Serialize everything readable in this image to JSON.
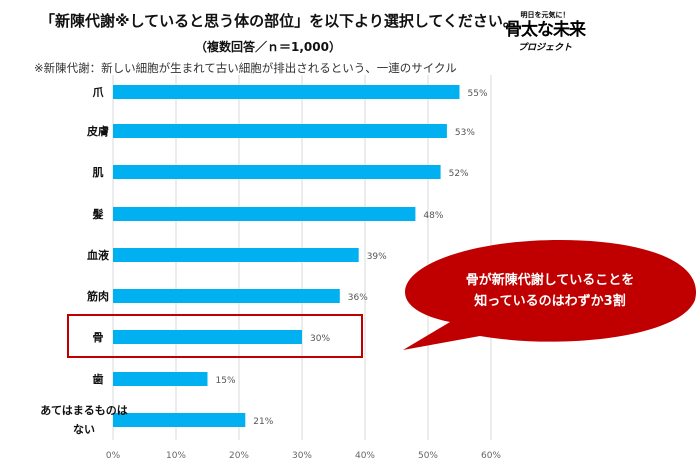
{
  "chart_data": {
    "type": "bar",
    "orientation": "horizontal",
    "title": "「新陳代謝※していると思う体の部位」を以下より選択してください。",
    "subtitle": "（複数回答／ｎ＝1,000）",
    "note": "※新陳代謝：新しい細胞が生まれて古い細胞が排出されるという、一連のサイクル",
    "categories": [
      "爪",
      "皮膚",
      "肌",
      "髪",
      "血液",
      "筋肉",
      "骨",
      "歯",
      "あてはまるものはない"
    ],
    "category_lines": [
      [
        "爪"
      ],
      [
        "皮膚"
      ],
      [
        "肌"
      ],
      [
        "髪"
      ],
      [
        "血液"
      ],
      [
        "筋肉"
      ],
      [
        "骨"
      ],
      [
        "歯"
      ],
      [
        "あてはまるものは",
        "ない"
      ]
    ],
    "values": [
      55,
      53,
      52,
      48,
      39,
      36,
      30,
      15,
      21
    ],
    "value_labels": [
      "55%",
      "53%",
      "52%",
      "48%",
      "39%",
      "36%",
      "30%",
      "15%",
      "21%"
    ],
    "xlim": [
      0,
      60
    ],
    "xticks": [
      0,
      10,
      20,
      30,
      40,
      50,
      60
    ],
    "xtick_labels": [
      "0%",
      "10%",
      "20%",
      "30%",
      "40%",
      "50%",
      "60%"
    ],
    "grid": true,
    "bar_color": "#00b0f0",
    "highlight_category": "骨",
    "highlight_color": "#c00000"
  },
  "logo": {
    "small": "明日を元気に！",
    "big": "骨太な未来",
    "sub": "プロジェクト"
  },
  "callout": {
    "lines": [
      "骨が新陳代謝していることを",
      "知っているのはわずか3割"
    ],
    "color": "#c00000"
  }
}
